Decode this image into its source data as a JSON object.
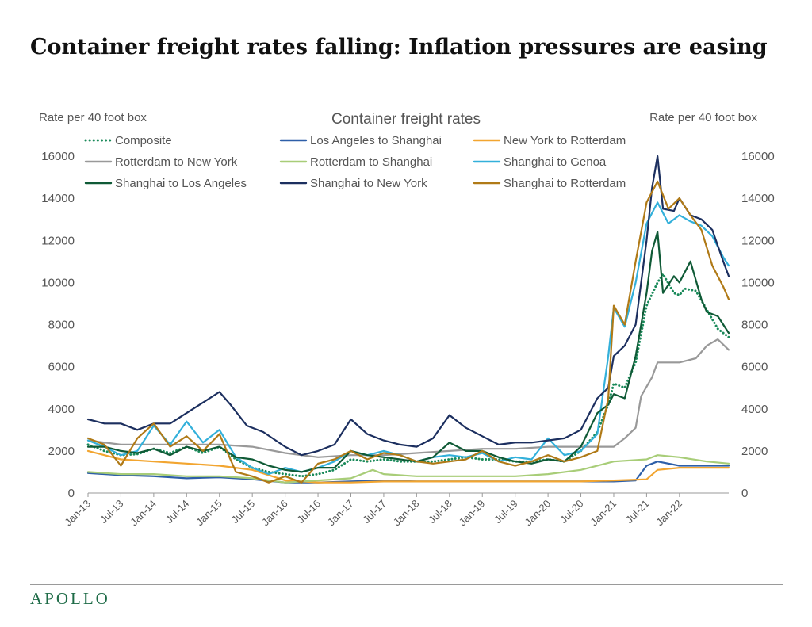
{
  "title": "Container freight rates falling: Inflation pressures are easing",
  "footer": {
    "brand": "APOLLO"
  },
  "colors": {
    "axis": "#9a9a9a",
    "text": "#555555",
    "brand": "#1e6b47",
    "composite": "#1a8a5a",
    "la_shanghai": "#2e5fa8",
    "ny_rotterdam": "#f2a530",
    "rotterdam_ny": "#999999",
    "rotterdam_shanghai": "#a8cd78",
    "shanghai_genoa": "#33b0da",
    "shanghai_la": "#0f5a36",
    "shanghai_ny": "#1c2f5f",
    "shanghai_rotterdam": "#b07a17"
  },
  "chart_data": {
    "type": "line",
    "title": "Container freight rates",
    "ylabel_left": "Rate per 40 foot box",
    "ylabel_right": "Rate per 40 foot box",
    "ylim": [
      0,
      16000
    ],
    "yticks": [
      0,
      2000,
      4000,
      6000,
      8000,
      10000,
      12000,
      14000,
      16000
    ],
    "xlim": [
      "2013-01",
      "2022-10"
    ],
    "xticks": [
      "Jan-13",
      "Jul-13",
      "Jan-14",
      "Jul-14",
      "Jan-15",
      "Jul-15",
      "Jan-16",
      "Jul-16",
      "Jan-17",
      "Jul-17",
      "Jan-18",
      "Jul-18",
      "Jan-19",
      "Jul-19",
      "Jan-20",
      "Jul-20",
      "Jan-21",
      "Jul-21",
      "Jan-22"
    ],
    "grid": false,
    "legend_position": "top",
    "series": [
      {
        "name": "Composite",
        "style": "dotted",
        "color_key": "composite",
        "x": [
          "2013-01",
          "2013-04",
          "2013-07",
          "2013-10",
          "2014-01",
          "2014-04",
          "2014-07",
          "2014-10",
          "2015-01",
          "2015-04",
          "2015-07",
          "2015-10",
          "2016-01",
          "2016-04",
          "2016-07",
          "2016-10",
          "2017-01",
          "2017-04",
          "2017-07",
          "2017-10",
          "2018-01",
          "2018-04",
          "2018-07",
          "2018-10",
          "2019-01",
          "2019-04",
          "2019-07",
          "2019-10",
          "2020-01",
          "2020-04",
          "2020-07",
          "2020-10",
          "2020-12",
          "2021-01",
          "2021-03",
          "2021-05",
          "2021-07",
          "2021-09",
          "2021-10",
          "2021-12",
          "2022-01",
          "2022-02",
          "2022-04",
          "2022-06",
          "2022-08",
          "2022-10"
        ],
        "y": [
          2300,
          2000,
          1800,
          1850,
          2100,
          1900,
          2200,
          1900,
          2200,
          1600,
          1200,
          1000,
          900,
          800,
          900,
          1100,
          1600,
          1500,
          1600,
          1500,
          1500,
          1500,
          1600,
          1700,
          1600,
          1600,
          1500,
          1500,
          1600,
          1500,
          2000,
          2900,
          4200,
          5200,
          5000,
          6200,
          8900,
          10000,
          10400,
          9500,
          9400,
          9700,
          9600,
          8700,
          7800,
          7400
        ]
      },
      {
        "name": "Los Angeles to Shanghai",
        "style": "solid",
        "color_key": "la_shanghai",
        "x": [
          "2013-01",
          "2013-07",
          "2014-01",
          "2014-07",
          "2015-01",
          "2015-07",
          "2016-01",
          "2016-07",
          "2017-01",
          "2017-07",
          "2018-01",
          "2018-07",
          "2019-01",
          "2019-07",
          "2020-01",
          "2020-07",
          "2021-01",
          "2021-05",
          "2021-07",
          "2021-09",
          "2022-01",
          "2022-06",
          "2022-10"
        ],
        "y": [
          950,
          850,
          800,
          700,
          750,
          650,
          500,
          500,
          550,
          600,
          550,
          550,
          550,
          550,
          550,
          550,
          550,
          600,
          1300,
          1500,
          1300,
          1300,
          1300
        ]
      },
      {
        "name": "New York to Rotterdam",
        "style": "solid",
        "color_key": "ny_rotterdam",
        "x": [
          "2013-01",
          "2013-07",
          "2014-01",
          "2014-07",
          "2015-01",
          "2015-07",
          "2016-01",
          "2016-07",
          "2017-01",
          "2017-07",
          "2018-01",
          "2018-07",
          "2019-01",
          "2019-07",
          "2020-01",
          "2020-07",
          "2021-01",
          "2021-07",
          "2021-09",
          "2022-01",
          "2022-06",
          "2022-10"
        ],
        "y": [
          2000,
          1600,
          1500,
          1400,
          1300,
          1100,
          600,
          500,
          500,
          550,
          550,
          550,
          550,
          550,
          550,
          550,
          600,
          650,
          1100,
          1200,
          1200,
          1200
        ]
      },
      {
        "name": "Rotterdam to New York",
        "style": "solid",
        "color_key": "rotterdam_ny",
        "x": [
          "2013-01",
          "2013-07",
          "2014-01",
          "2014-07",
          "2015-01",
          "2015-07",
          "2016-01",
          "2016-07",
          "2017-01",
          "2017-07",
          "2018-01",
          "2018-07",
          "2019-01",
          "2019-07",
          "2020-01",
          "2020-07",
          "2021-01",
          "2021-03",
          "2021-05",
          "2021-06",
          "2021-08",
          "2021-09",
          "2022-01",
          "2022-04",
          "2022-06",
          "2022-08",
          "2022-10"
        ],
        "y": [
          2500,
          2300,
          2300,
          2300,
          2300,
          2200,
          1900,
          1700,
          1800,
          1800,
          1900,
          2000,
          2100,
          2100,
          2200,
          2200,
          2200,
          2600,
          3100,
          4600,
          5500,
          6200,
          6200,
          6400,
          7000,
          7300,
          6800
        ]
      },
      {
        "name": "Rotterdam to Shanghai",
        "style": "solid",
        "color_key": "rotterdam_shanghai",
        "x": [
          "2013-01",
          "2013-07",
          "2014-01",
          "2014-07",
          "2015-01",
          "2015-07",
          "2016-01",
          "2016-07",
          "2017-01",
          "2017-05",
          "2017-07",
          "2018-01",
          "2018-07",
          "2019-01",
          "2019-07",
          "2020-01",
          "2020-07",
          "2021-01",
          "2021-07",
          "2021-09",
          "2022-01",
          "2022-06",
          "2022-10"
        ],
        "y": [
          1000,
          900,
          900,
          800,
          800,
          700,
          500,
          600,
          700,
          1100,
          900,
          800,
          800,
          800,
          800,
          900,
          1100,
          1500,
          1600,
          1800,
          1700,
          1500,
          1400
        ]
      },
      {
        "name": "Shanghai to Genoa",
        "style": "solid",
        "color_key": "shanghai_genoa",
        "x": [
          "2013-01",
          "2013-04",
          "2013-07",
          "2013-10",
          "2014-01",
          "2014-04",
          "2014-07",
          "2014-10",
          "2015-01",
          "2015-04",
          "2015-07",
          "2015-10",
          "2016-01",
          "2016-04",
          "2016-07",
          "2016-10",
          "2017-01",
          "2017-04",
          "2017-07",
          "2017-10",
          "2018-01",
          "2018-04",
          "2018-07",
          "2018-10",
          "2019-01",
          "2019-04",
          "2019-07",
          "2019-10",
          "2020-01",
          "2020-04",
          "2020-07",
          "2020-10",
          "2020-12",
          "2021-01",
          "2021-03",
          "2021-05",
          "2021-07",
          "2021-09",
          "2021-11",
          "2022-01",
          "2022-03",
          "2022-05",
          "2022-07",
          "2022-09",
          "2022-10"
        ],
        "y": [
          2500,
          2200,
          1800,
          2000,
          3200,
          2300,
          3400,
          2400,
          3000,
          1700,
          1200,
          900,
          1200,
          1000,
          1200,
          1500,
          2000,
          1800,
          2000,
          1800,
          1500,
          1700,
          1800,
          1700,
          1900,
          1500,
          1700,
          1600,
          2600,
          1800,
          2000,
          2800,
          6500,
          8800,
          7900,
          10000,
          12800,
          13800,
          12800,
          13200,
          12900,
          12700,
          12200,
          11200,
          10800
        ]
      },
      {
        "name": "Shanghai to Los Angeles",
        "style": "solid",
        "color_key": "shanghai_la",
        "x": [
          "2013-01",
          "2013-04",
          "2013-07",
          "2013-10",
          "2014-01",
          "2014-04",
          "2014-07",
          "2014-10",
          "2015-01",
          "2015-04",
          "2015-07",
          "2015-10",
          "2016-01",
          "2016-04",
          "2016-07",
          "2016-10",
          "2017-01",
          "2017-04",
          "2017-07",
          "2017-10",
          "2018-01",
          "2018-04",
          "2018-07",
          "2018-10",
          "2019-01",
          "2019-04",
          "2019-07",
          "2019-10",
          "2020-01",
          "2020-04",
          "2020-07",
          "2020-10",
          "2020-12",
          "2021-01",
          "2021-03",
          "2021-05",
          "2021-07",
          "2021-08",
          "2021-09",
          "2021-10",
          "2021-12",
          "2022-01",
          "2022-03",
          "2022-05",
          "2022-06",
          "2022-08",
          "2022-10"
        ],
        "y": [
          2200,
          2200,
          2000,
          1900,
          2100,
          1800,
          2200,
          2000,
          2200,
          1700,
          1600,
          1300,
          1100,
          1000,
          1200,
          1200,
          2000,
          1800,
          1700,
          1600,
          1500,
          1700,
          2400,
          2000,
          2000,
          1700,
          1500,
          1400,
          1600,
          1500,
          2200,
          3800,
          4200,
          4700,
          4500,
          6500,
          9500,
          11500,
          12400,
          9500,
          10300,
          10000,
          11000,
          9200,
          8600,
          8400,
          7600
        ]
      },
      {
        "name": "Shanghai to New York",
        "style": "solid",
        "color_key": "shanghai_ny",
        "x": [
          "2013-01",
          "2013-04",
          "2013-07",
          "2013-10",
          "2014-01",
          "2014-04",
          "2014-07",
          "2014-10",
          "2015-01",
          "2015-03",
          "2015-06",
          "2015-09",
          "2016-01",
          "2016-04",
          "2016-07",
          "2016-10",
          "2017-01",
          "2017-04",
          "2017-07",
          "2017-10",
          "2018-01",
          "2018-04",
          "2018-07",
          "2018-10",
          "2019-01",
          "2019-04",
          "2019-07",
          "2019-10",
          "2020-01",
          "2020-04",
          "2020-07",
          "2020-10",
          "2020-12",
          "2021-01",
          "2021-03",
          "2021-05",
          "2021-07",
          "2021-08",
          "2021-09",
          "2021-10",
          "2021-12",
          "2022-01",
          "2022-03",
          "2022-05",
          "2022-07",
          "2022-09",
          "2022-10"
        ],
        "y": [
          3500,
          3300,
          3300,
          3000,
          3300,
          3300,
          3800,
          4300,
          4800,
          4200,
          3200,
          2900,
          2200,
          1800,
          2000,
          2300,
          3500,
          2800,
          2500,
          2300,
          2200,
          2600,
          3700,
          3100,
          2700,
          2300,
          2400,
          2400,
          2500,
          2600,
          3000,
          4500,
          5000,
          6500,
          7000,
          8000,
          12000,
          14500,
          16000,
          13500,
          13400,
          14000,
          13200,
          13000,
          12500,
          11000,
          10300
        ]
      },
      {
        "name": "Shanghai to Rotterdam",
        "style": "solid",
        "color_key": "shanghai_rotterdam",
        "x": [
          "2013-01",
          "2013-04",
          "2013-07",
          "2013-10",
          "2014-01",
          "2014-04",
          "2014-07",
          "2014-10",
          "2015-01",
          "2015-04",
          "2015-07",
          "2015-10",
          "2016-01",
          "2016-04",
          "2016-07",
          "2016-10",
          "2017-01",
          "2017-04",
          "2017-07",
          "2017-10",
          "2018-01",
          "2018-04",
          "2018-07",
          "2018-10",
          "2019-01",
          "2019-04",
          "2019-07",
          "2019-10",
          "2020-01",
          "2020-04",
          "2020-07",
          "2020-10",
          "2020-12",
          "2021-01",
          "2021-03",
          "2021-05",
          "2021-07",
          "2021-09",
          "2021-11",
          "2022-01",
          "2022-03",
          "2022-05",
          "2022-07",
          "2022-09",
          "2022-10"
        ],
        "y": [
          2600,
          2300,
          1300,
          2600,
          3300,
          2200,
          2700,
          2000,
          2800,
          1000,
          800,
          500,
          800,
          500,
          1400,
          1600,
          2000,
          1600,
          1900,
          1800,
          1500,
          1400,
          1500,
          1600,
          2000,
          1500,
          1300,
          1500,
          1800,
          1500,
          1700,
          2000,
          4500,
          8900,
          8000,
          11000,
          13800,
          14800,
          13500,
          14000,
          13200,
          12500,
          10800,
          9800,
          9200
        ]
      }
    ]
  }
}
